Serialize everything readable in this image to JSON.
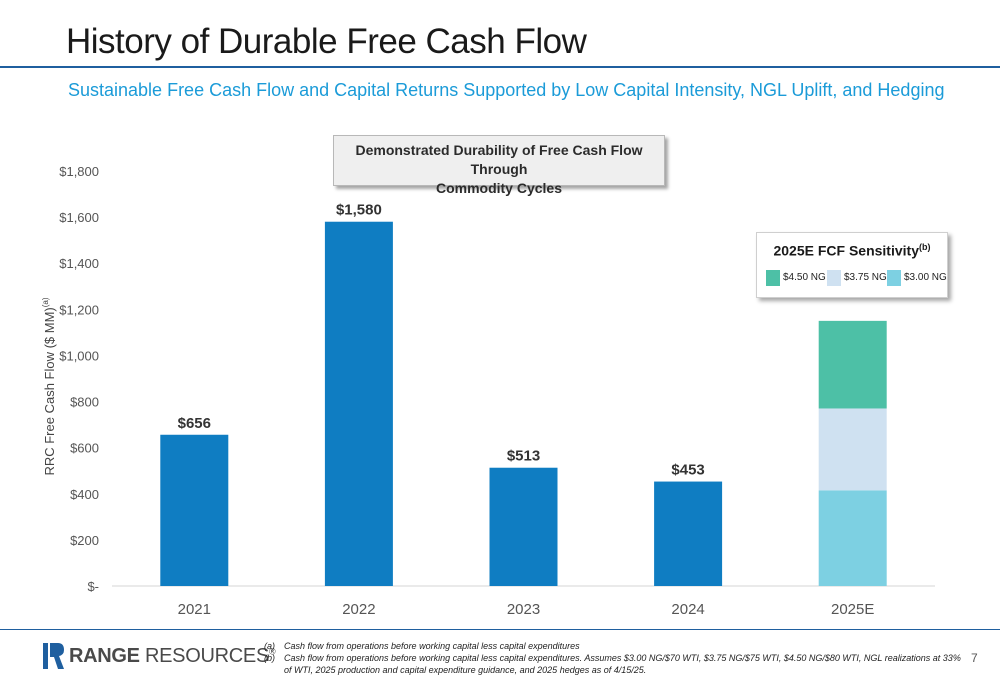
{
  "page": {
    "title": "History of Durable Free Cash Flow",
    "subtitle": "Sustainable Free Cash Flow and Capital Returns Supported by Low Capital Intensity, NGL Uplift, and Hedging",
    "page_number": "7"
  },
  "callout": {
    "line1": "Demonstrated Durability of Free Cash Flow Through",
    "line2": "Commodity Cycles"
  },
  "sensitivity_box": {
    "title": "2025E FCF Sensitivity",
    "title_note": "(b)",
    "items": [
      {
        "label": "$4.50 NG",
        "color": "#4dc0a6"
      },
      {
        "label": "$3.75 NG",
        "color": "#cfe1f1"
      },
      {
        "label": "$3.00 NG",
        "color": "#7dd0e2"
      }
    ]
  },
  "chart_data": {
    "type": "bar",
    "categories": [
      "2021",
      "2022",
      "2023",
      "2024",
      "2025E"
    ],
    "series": [
      {
        "values": [
          656,
          1580,
          513,
          453,
          null
        ],
        "labels": [
          "$656",
          "$1,580",
          "$513",
          "$453",
          ""
        ],
        "color": "#0f7dc2"
      }
    ],
    "stacked_2025E": [
      {
        "name": "$3.00 NG",
        "value": 415,
        "color": "#7dd0e2"
      },
      {
        "name": "$3.75 NG",
        "value": 355,
        "color": "#cfe1f1"
      },
      {
        "name": "$4.50 NG",
        "value": 380,
        "color": "#4dc0a6"
      }
    ],
    "ylabel": "RRC Free Cash Flow ($ MM)",
    "ylabel_note": "(a)",
    "ylim": [
      0,
      1800
    ],
    "yticks": [
      0,
      200,
      400,
      600,
      800,
      1000,
      1200,
      1400,
      1600,
      1800
    ],
    "ytick_labels": [
      "$-",
      "$200",
      "$400",
      "$600",
      "$800",
      "$1,000",
      "$1,200",
      "$1,400",
      "$1,600",
      "$1,800"
    ],
    "grid": false
  },
  "footer": {
    "logo_bold": "RANGE",
    "logo_rest": " RESOURCES",
    "logo_reg": "®",
    "footnotes": [
      {
        "marker": "(a)",
        "text": "Cash flow from operations before working capital less capital expenditures"
      },
      {
        "marker": "(b)",
        "text": "Cash flow from operations before working capital less capital expenditures. Assumes $3.00 NG/$70 WTI, $3.75 NG/$75 WTI, $4.50 NG/$80 WTI, NGL realizations at 33% of WTI, 2025 production and capital expenditure guidance, and 2025 hedges as of 4/15/25."
      }
    ]
  }
}
